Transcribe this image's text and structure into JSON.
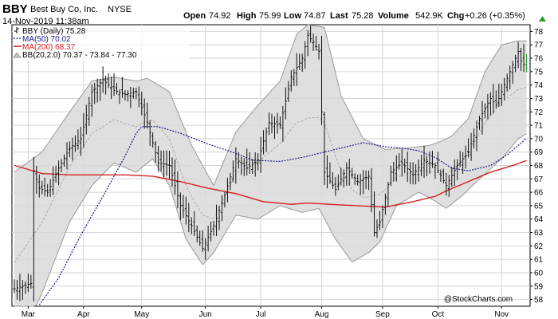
{
  "header": {
    "symbol": "BBY",
    "company": "Best Buy Co, Inc.",
    "exchange": "NYSE",
    "datetime": "14-Nov-2019 11:38am",
    "open_label": "Open",
    "open": "74.92",
    "high_label": "High",
    "high": "75.99",
    "low_label": "Low",
    "low": "74.87",
    "last_label": "Last",
    "last": "75.28",
    "volume_label": "Volume",
    "volume": "542.9K",
    "chg_label": "Chg",
    "chg": "+0.26 (+0.35%)",
    "watermark": "@StockCharts.com"
  },
  "legend": {
    "price": "BBY (Daily) 75.28",
    "ma50": "MA(50) 70.02",
    "ma200": "MA(200) 68.37",
    "bb": "BB(20,2.0) 70.37 - 73.84 - 77.30"
  },
  "colors": {
    "ma50": "#1b1b8f",
    "ma200": "#d41e1e",
    "band_fill": "#d9d9d9",
    "band_edge": "#9a9a9a",
    "grid": "#d4d4d4",
    "bar": "#111111",
    "up_arrow": "#2a9d2a",
    "last_bar": "#2ea02e"
  },
  "chart_data": {
    "type": "ohlc",
    "ylim": [
      57.5,
      78.5
    ],
    "yticks": [
      58,
      59,
      60,
      61,
      62,
      63,
      64,
      65,
      66,
      67,
      68,
      69,
      70,
      71,
      72,
      73,
      74,
      75,
      76,
      77,
      78
    ],
    "ytick_labels": [
      "58",
      "59",
      "60",
      "61",
      "62",
      "63",
      "64",
      "65",
      "66",
      "67",
      "68",
      "69",
      "70",
      "71",
      "72",
      "73",
      "74",
      "75",
      "76",
      "77",
      "78"
    ],
    "xticks": [
      {
        "label": "Mar",
        "i": 5
      },
      {
        "label": "Apr",
        "i": 25
      },
      {
        "label": "May",
        "i": 46
      },
      {
        "label": "Jun",
        "i": 69
      },
      {
        "label": "Jul",
        "i": 89
      },
      {
        "label": "Aug",
        "i": 111
      },
      {
        "label": "Sep",
        "i": 133
      },
      {
        "label": "Oct",
        "i": 153
      },
      {
        "label": "Nov",
        "i": 176
      }
    ],
    "bar_count": 186,
    "price_anchors": [
      [
        0,
        58.8
      ],
      [
        6,
        59.2
      ],
      [
        7,
        67.6
      ],
      [
        9,
        66.3
      ],
      [
        12,
        66.0
      ],
      [
        16,
        67.8
      ],
      [
        20,
        69.3
      ],
      [
        24,
        70.0
      ],
      [
        28,
        73.5
      ],
      [
        32,
        74.4
      ],
      [
        36,
        73.6
      ],
      [
        40,
        73.3
      ],
      [
        44,
        73.5
      ],
      [
        48,
        71.2
      ],
      [
        52,
        68.2
      ],
      [
        56,
        68.0
      ],
      [
        60,
        65.0
      ],
      [
        64,
        63.5
      ],
      [
        68,
        61.8
      ],
      [
        72,
        63.5
      ],
      [
        76,
        65.8
      ],
      [
        80,
        68.5
      ],
      [
        84,
        67.8
      ],
      [
        88,
        68.4
      ],
      [
        92,
        71.2
      ],
      [
        96,
        71.0
      ],
      [
        100,
        74.6
      ],
      [
        104,
        76.0
      ],
      [
        106,
        77.7
      ],
      [
        108,
        77.2
      ],
      [
        110,
        76.5
      ],
      [
        112,
        67.5
      ],
      [
        116,
        66.2
      ],
      [
        120,
        67.8
      ],
      [
        124,
        66.8
      ],
      [
        128,
        67.2
      ],
      [
        130,
        63.0
      ],
      [
        132,
        63.8
      ],
      [
        136,
        67.5
      ],
      [
        140,
        68.2
      ],
      [
        144,
        67.3
      ],
      [
        148,
        68.4
      ],
      [
        152,
        68.0
      ],
      [
        156,
        66.5
      ],
      [
        160,
        68.0
      ],
      [
        164,
        69.0
      ],
      [
        168,
        71.5
      ],
      [
        172,
        73.0
      ],
      [
        174,
        72.5
      ],
      [
        178,
        74.5
      ],
      [
        182,
        76.5
      ],
      [
        183,
        75.8
      ],
      [
        185,
        75.28
      ]
    ],
    "ma50_anchors": [
      [
        9,
        57.6
      ],
      [
        16,
        59.6
      ],
      [
        24,
        62.8
      ],
      [
        32,
        65.7
      ],
      [
        40,
        68.7
      ],
      [
        44,
        70.4
      ],
      [
        46,
        70.9
      ],
      [
        52,
        70.9
      ],
      [
        60,
        70.4
      ],
      [
        70,
        69.6
      ],
      [
        80,
        68.9
      ],
      [
        86,
        68.4
      ],
      [
        96,
        68.3
      ],
      [
        104,
        68.6
      ],
      [
        112,
        69.0
      ],
      [
        120,
        69.4
      ],
      [
        126,
        69.7
      ],
      [
        134,
        69.4
      ],
      [
        140,
        69.3
      ],
      [
        146,
        69.1
      ],
      [
        152,
        68.6
      ],
      [
        158,
        67.8
      ],
      [
        164,
        67.6
      ],
      [
        172,
        68.0
      ],
      [
        178,
        68.8
      ],
      [
        185,
        70.02
      ]
    ],
    "ma200_anchors": [
      [
        0,
        68.0
      ],
      [
        10,
        67.4
      ],
      [
        20,
        67.3
      ],
      [
        30,
        67.3
      ],
      [
        40,
        67.3
      ],
      [
        50,
        67.2
      ],
      [
        60,
        66.8
      ],
      [
        70,
        66.3
      ],
      [
        80,
        65.9
      ],
      [
        90,
        65.3
      ],
      [
        100,
        65.1
      ],
      [
        106,
        65.2
      ],
      [
        114,
        65.1
      ],
      [
        124,
        65.0
      ],
      [
        134,
        64.9
      ],
      [
        144,
        65.3
      ],
      [
        152,
        65.7
      ],
      [
        156,
        66.1
      ],
      [
        164,
        66.8
      ],
      [
        172,
        67.5
      ],
      [
        180,
        68.0
      ],
      [
        185,
        68.37
      ]
    ],
    "bb_upper_anchors": [
      [
        0,
        67.5
      ],
      [
        10,
        69.0
      ],
      [
        20,
        72.0
      ],
      [
        28,
        74.3
      ],
      [
        36,
        74.6
      ],
      [
        44,
        74.3
      ],
      [
        48,
        74.5
      ],
      [
        56,
        73.5
      ],
      [
        64,
        69.5
      ],
      [
        72,
        66.5
      ],
      [
        80,
        70.5
      ],
      [
        88,
        72.5
      ],
      [
        96,
        74.3
      ],
      [
        102,
        77.8
      ],
      [
        106,
        78.5
      ],
      [
        112,
        78.3
      ],
      [
        118,
        73.2
      ],
      [
        126,
        70.0
      ],
      [
        134,
        69.2
      ],
      [
        142,
        69.3
      ],
      [
        150,
        69.5
      ],
      [
        154,
        69.8
      ],
      [
        158,
        70.2
      ],
      [
        164,
        71.5
      ],
      [
        170,
        75.0
      ],
      [
        176,
        77.0
      ],
      [
        182,
        77.3
      ],
      [
        185,
        77.3
      ]
    ],
    "bb_lower_anchors": [
      [
        0,
        54.0
      ],
      [
        10,
        58.5
      ],
      [
        20,
        63.8
      ],
      [
        28,
        66.5
      ],
      [
        36,
        68.2
      ],
      [
        44,
        67.5
      ],
      [
        50,
        68.5
      ],
      [
        56,
        66.5
      ],
      [
        62,
        62.5
      ],
      [
        68,
        60.6
      ],
      [
        72,
        61.5
      ],
      [
        80,
        64.3
      ],
      [
        88,
        64.0
      ],
      [
        96,
        65.0
      ],
      [
        104,
        64.5
      ],
      [
        110,
        64.8
      ],
      [
        116,
        62.5
      ],
      [
        122,
        60.8
      ],
      [
        128,
        61.5
      ],
      [
        132,
        62.3
      ],
      [
        138,
        65.0
      ],
      [
        146,
        66.0
      ],
      [
        150,
        65.6
      ],
      [
        156,
        64.8
      ],
      [
        162,
        65.8
      ],
      [
        168,
        67.0
      ],
      [
        176,
        68.5
      ],
      [
        182,
        70.0
      ],
      [
        185,
        70.37
      ]
    ]
  }
}
